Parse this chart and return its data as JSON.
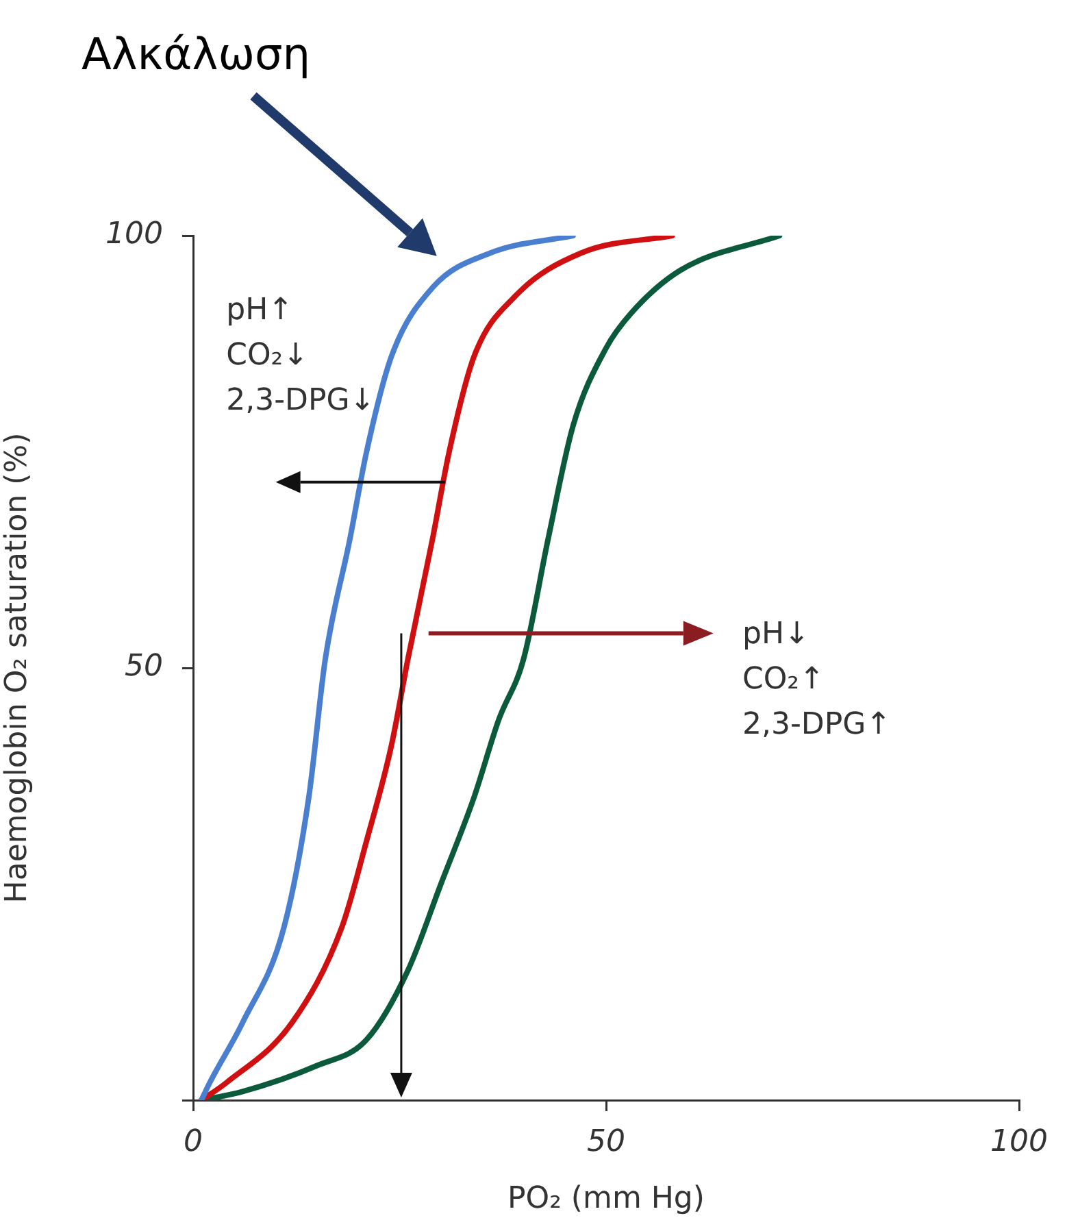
{
  "chart_data": {
    "type": "line",
    "xlabel": "PO₂ (mm Hg)",
    "ylabel": "Haemoglobin O₂ saturation (%)",
    "xlim": [
      0,
      100
    ],
    "xticks": [
      0,
      50,
      100
    ],
    "ylim": [
      0,
      100
    ],
    "yticks": [
      {
        "value": 0,
        "label": null
      },
      50,
      100
    ],
    "grid": false,
    "legend": false,
    "marker": "none",
    "line_style": "solid",
    "series": [
      {
        "color": "#4a7fd0",
        "x": [
          1,
          2,
          6,
          11,
          14,
          16,
          19,
          21,
          24,
          29,
          36,
          46
        ],
        "values": [
          0,
          2,
          9,
          20,
          35,
          51,
          65,
          75,
          86,
          94,
          98,
          100
        ]
      },
      {
        "color": "#d01010",
        "x": [
          1,
          4,
          12,
          18,
          21,
          24,
          26,
          29,
          31,
          34,
          39,
          47,
          58
        ],
        "values": [
          0,
          2,
          9,
          20,
          30,
          41,
          51,
          65,
          75,
          86,
          93,
          98,
          100
        ]
      },
      {
        "color": "#0b5a3c",
        "x": [
          1,
          6,
          15,
          21,
          26,
          30,
          34,
          37,
          40,
          43,
          46,
          50,
          53,
          59,
          71
        ],
        "values": [
          0,
          1,
          4,
          7,
          15,
          25,
          35,
          44,
          51,
          65,
          78,
          87,
          91,
          96,
          100
        ]
      }
    ],
    "annotations": [
      "Αλκάλωση",
      "pH↑\nCO₂↓\n2,3-DPG↓",
      "pH↓\nCO₂↑\n2,3-DPG↑"
    ]
  }
}
